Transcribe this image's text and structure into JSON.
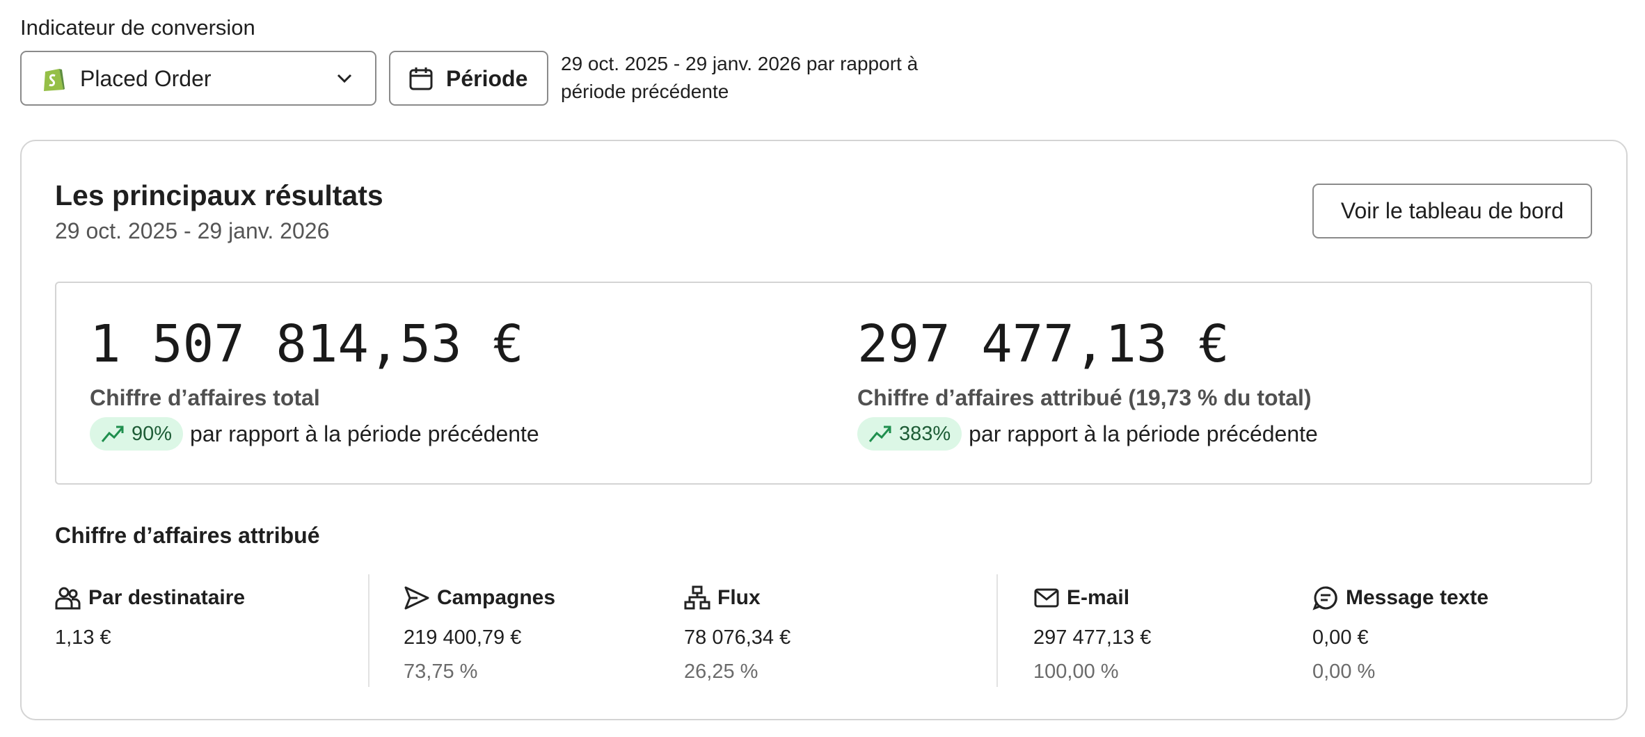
{
  "filter": {
    "label": "Indicateur de conversion",
    "metric": "Placed Order",
    "period_button": "Période",
    "range_text_line1": "29 oct. 2025 - 29 janv. 2026 par rapport à",
    "range_text_line2": "période précédente"
  },
  "card": {
    "title": "Les principaux résultats",
    "subtitle": "29 oct. 2025 - 29 janv. 2026",
    "dashboard_button": "Voir le tableau de bord",
    "kpis": [
      {
        "value": "1 507 814,53 €",
        "label": "Chiffre d’affaires total",
        "change": "90%",
        "comparison": "par rapport à la période précédente"
      },
      {
        "value": "297 477,13 €",
        "label": "Chiffre d’affaires attribué (19,73 % du total)",
        "change": "383%",
        "comparison": "par rapport à la période précédente"
      }
    ],
    "attributed": {
      "heading": "Chiffre d’affaires attribué",
      "columns": [
        {
          "title": "Par destinataire",
          "value": "1,13 €"
        },
        {
          "title": "Campagnes",
          "value": "219 400,79 €",
          "share": "73,75 %"
        },
        {
          "title": "Flux",
          "value": "78 076,34 €",
          "share": "26,25 %"
        },
        {
          "title": "E-mail",
          "value": "297 477,13 €",
          "share": "100,00 %"
        },
        {
          "title": "Message texte",
          "value": "0,00 €",
          "share": "0,00 %"
        }
      ]
    }
  }
}
